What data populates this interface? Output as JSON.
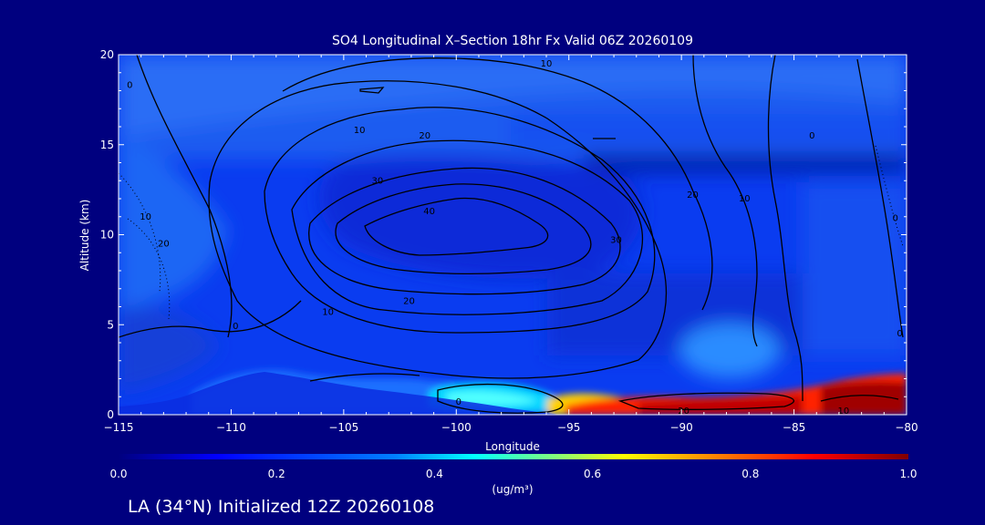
{
  "footer": "LA (34°N) Initialized 12Z 20260108",
  "colors": {
    "background": "#00007f",
    "text": "#ffffff",
    "contour": "#000000",
    "colormap": [
      "#00007f",
      "#0000ff",
      "#007fff",
      "#00ffff",
      "#7fff7f",
      "#ffff00",
      "#ff7f00",
      "#ff0000",
      "#7f0000"
    ]
  },
  "chart_data": {
    "type": "heatmap",
    "title": "SO4 Longitudinal X–Section 18hr  Fx Valid 06Z 20260109",
    "xlabel": "Longitude",
    "ylabel": "Altitude (km)",
    "xlim": [
      -115,
      -80
    ],
    "ylim": [
      0,
      20
    ],
    "xticks": [
      -115,
      -110,
      -105,
      -100,
      -95,
      -90,
      -85,
      -80
    ],
    "yticks": [
      0,
      5,
      10,
      15,
      20
    ],
    "colorbar": {
      "label": "(ug/m³)",
      "range": [
        0,
        1
      ],
      "ticks": [
        "0.0",
        "0.2",
        "0.4",
        "0.6",
        "0.8",
        "1.0"
      ]
    },
    "contour_labels": [
      {
        "text": "10",
        "lon": -96,
        "alt": 19.5
      },
      {
        "text": "0",
        "lon": -114.5,
        "alt": 18.3
      },
      {
        "text": "10",
        "lon": -104.3,
        "alt": 15.8
      },
      {
        "text": "20",
        "lon": -101.4,
        "alt": 15.5
      },
      {
        "text": "30",
        "lon": -103.5,
        "alt": 13.0
      },
      {
        "text": "40",
        "lon": -101.2,
        "alt": 11.3
      },
      {
        "text": "30",
        "lon": -92.9,
        "alt": 9.7
      },
      {
        "text": "20",
        "lon": -89.5,
        "alt": 12.2
      },
      {
        "text": "10",
        "lon": -87.2,
        "alt": 12.0
      },
      {
        "text": "0",
        "lon": -84.2,
        "alt": 15.5
      },
      {
        "text": "0",
        "lon": -80.5,
        "alt": 10.9
      },
      {
        "text": "10",
        "lon": -113.8,
        "alt": 11.0
      },
      {
        "text": "20",
        "lon": -113.0,
        "alt": 9.5
      },
      {
        "text": "20",
        "lon": -102.1,
        "alt": 6.3
      },
      {
        "text": "10",
        "lon": -105.7,
        "alt": 5.7
      },
      {
        "text": "0",
        "lon": -109.8,
        "alt": 4.9
      },
      {
        "text": "0",
        "lon": -80.3,
        "alt": 4.5
      },
      {
        "text": "0",
        "lon": -99.9,
        "alt": 0.7
      },
      {
        "text": "20",
        "lon": -89.9,
        "alt": 0.2
      },
      {
        "text": "10",
        "lon": -82.8,
        "alt": 0.2
      }
    ],
    "grid": false
  }
}
